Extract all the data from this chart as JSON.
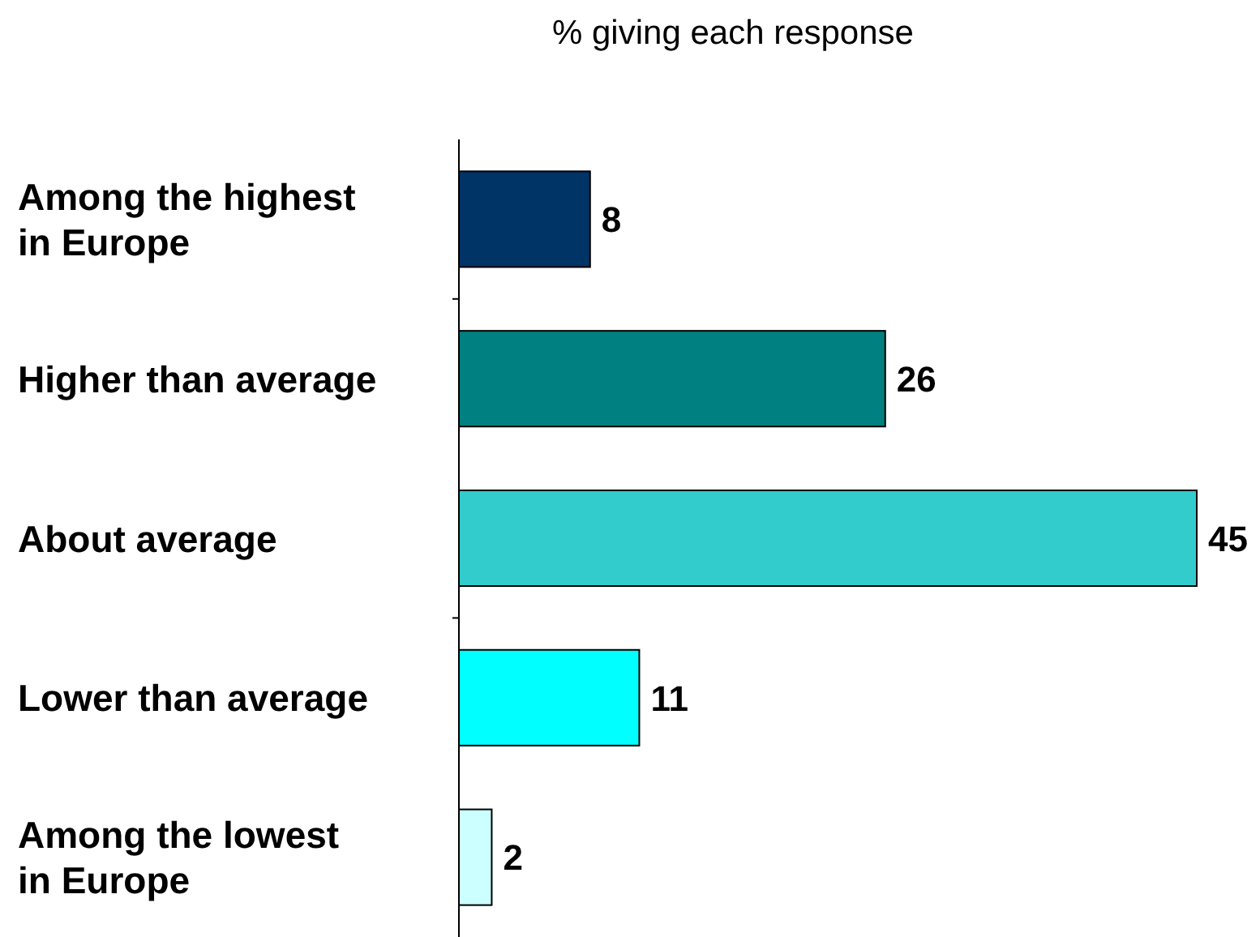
{
  "chart_data": {
    "type": "bar",
    "orientation": "horizontal",
    "title": "% giving each response",
    "categories": [
      "Among the highest in Europe",
      "Higher than average",
      "About average",
      "Lower than average",
      "Among the lowest in Europe"
    ],
    "values": [
      8,
      26,
      45,
      11,
      2
    ],
    "colors": [
      "#003366",
      "#008080",
      "#33cccc",
      "#00ffff",
      "#ccffff"
    ],
    "data_labels": true
  }
}
